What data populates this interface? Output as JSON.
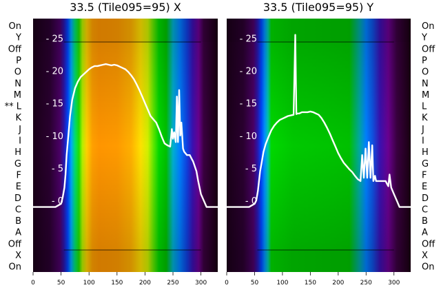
{
  "colors": {
    "trace": "#ffffff",
    "background": "#ffffff"
  },
  "row_labels": [
    "On",
    "Y",
    "Off",
    "P",
    "O",
    "N",
    "M",
    "** L",
    "K",
    "J",
    "I",
    "H",
    "G",
    "F",
    "E",
    "D",
    "C",
    "B",
    "A",
    "Off",
    "X",
    "On"
  ],
  "chart_data": [
    {
      "type": "heatmap",
      "title": "33.5 (Tile095=95) X",
      "xlim": [
        0,
        330
      ],
      "x_ticks": [
        0,
        50,
        100,
        150,
        200,
        250,
        300
      ],
      "ylim": [
        -11,
        28
      ],
      "y_ticks": [
        25,
        20,
        15,
        10,
        5,
        0
      ],
      "grid": false,
      "band_colors": [
        {
          "x": 0,
          "color": "#1a0018"
        },
        {
          "x": 30,
          "color": "#2a0030"
        },
        {
          "x": 48,
          "color": "#4a0066"
        },
        {
          "x": 55,
          "color": "#2c15a8"
        },
        {
          "x": 62,
          "color": "#0046ff"
        },
        {
          "x": 68,
          "color": "#00a6ff"
        },
        {
          "x": 75,
          "color": "#00e070"
        },
        {
          "x": 82,
          "color": "#22e000"
        },
        {
          "x": 88,
          "color": "#b4f000"
        },
        {
          "x": 96,
          "color": "#ffd000"
        },
        {
          "x": 106,
          "color": "#ffa000"
        },
        {
          "x": 118,
          "color": "#ff9500"
        },
        {
          "x": 150,
          "color": "#ff9a00"
        },
        {
          "x": 175,
          "color": "#ffb000"
        },
        {
          "x": 192,
          "color": "#ffe000"
        },
        {
          "x": 205,
          "color": "#d2f000"
        },
        {
          "x": 215,
          "color": "#60e800"
        },
        {
          "x": 225,
          "color": "#00d800"
        },
        {
          "x": 238,
          "color": "#00c000"
        },
        {
          "x": 250,
          "color": "#00b0d0"
        },
        {
          "x": 262,
          "color": "#0080ff"
        },
        {
          "x": 275,
          "color": "#1040e0"
        },
        {
          "x": 285,
          "color": "#3a10b0"
        },
        {
          "x": 296,
          "color": "#6a0090"
        },
        {
          "x": 305,
          "color": "#3a0040"
        },
        {
          "x": 330,
          "color": "#180010"
        }
      ],
      "series": [
        {
          "x": [
            0,
            20,
            40,
            50,
            53,
            56,
            58,
            60,
            63,
            66,
            70,
            75,
            80,
            85,
            90,
            95,
            100,
            105,
            110,
            115,
            120,
            125,
            130,
            135,
            140,
            145,
            150,
            155,
            160,
            165,
            170,
            175,
            180,
            185,
            190,
            195,
            200,
            205,
            210,
            215,
            220,
            225,
            230,
            235,
            240,
            245,
            248,
            250,
            252,
            255,
            257,
            259,
            261,
            263,
            265,
            268,
            270,
            275,
            280,
            283,
            286,
            288,
            290,
            292,
            295,
            300,
            305,
            310,
            315,
            330
          ],
          "y": [
            -1,
            -1,
            -1,
            -0.5,
            0.5,
            2,
            4,
            7,
            10,
            13,
            15.5,
            17.3,
            18.3,
            19,
            19.4,
            19.8,
            20.2,
            20.5,
            20.7,
            20.7,
            20.8,
            20.9,
            21,
            20.9,
            20.8,
            20.9,
            20.8,
            20.6,
            20.4,
            20.2,
            19.8,
            19.3,
            18.7,
            17.9,
            17,
            16,
            15,
            14,
            13,
            12.5,
            12,
            11,
            9.8,
            8.8,
            8.5,
            8.3,
            11,
            9.5,
            10.5,
            9,
            16,
            9,
            17,
            10,
            12,
            8,
            7.5,
            7,
            7,
            6.5,
            6,
            5.5,
            5,
            4.5,
            3,
            1,
            0,
            -1,
            -1,
            -1
          ]
        }
      ]
    },
    {
      "type": "heatmap",
      "title": "33.5 (Tile095=95) Y",
      "xlim": [
        0,
        330
      ],
      "x_ticks": [
        0,
        50,
        100,
        150,
        200,
        250,
        300
      ],
      "ylim": [
        -11,
        28
      ],
      "y_ticks": [
        25,
        20,
        15,
        10,
        5,
        0
      ],
      "grid": false,
      "band_colors": [
        {
          "x": 0,
          "color": "#1a0018"
        },
        {
          "x": 30,
          "color": "#2a0030"
        },
        {
          "x": 48,
          "color": "#4a0066"
        },
        {
          "x": 55,
          "color": "#2c15a8"
        },
        {
          "x": 62,
          "color": "#0046ff"
        },
        {
          "x": 68,
          "color": "#0090ff"
        },
        {
          "x": 74,
          "color": "#00c8b0"
        },
        {
          "x": 80,
          "color": "#00d800"
        },
        {
          "x": 120,
          "color": "#00c800"
        },
        {
          "x": 180,
          "color": "#00c400"
        },
        {
          "x": 220,
          "color": "#00c000"
        },
        {
          "x": 238,
          "color": "#00a8a0"
        },
        {
          "x": 250,
          "color": "#0080ff"
        },
        {
          "x": 262,
          "color": "#1050e0"
        },
        {
          "x": 275,
          "color": "#3a10b0"
        },
        {
          "x": 290,
          "color": "#6a0090"
        },
        {
          "x": 305,
          "color": "#3a0040"
        },
        {
          "x": 330,
          "color": "#180010"
        }
      ],
      "series": [
        {
          "x": [
            0,
            20,
            40,
            50,
            53,
            56,
            58,
            60,
            63,
            66,
            70,
            75,
            80,
            85,
            90,
            95,
            100,
            105,
            110,
            115,
            120,
            123,
            125,
            127,
            130,
            135,
            140,
            145,
            150,
            155,
            160,
            165,
            170,
            175,
            180,
            185,
            190,
            195,
            200,
            205,
            210,
            215,
            220,
            225,
            230,
            235,
            240,
            243,
            246,
            249,
            252,
            255,
            258,
            261,
            263,
            266,
            268,
            270,
            275,
            280,
            285,
            288,
            290,
            292,
            295,
            300,
            305,
            310,
            315,
            330
          ],
          "y": [
            -1,
            -1,
            -1,
            -0.5,
            0,
            1.5,
            3,
            4.5,
            6,
            7.5,
            8.7,
            9.8,
            10.8,
            11.5,
            12,
            12.4,
            12.6,
            12.8,
            13,
            13.1,
            13.2,
            25.5,
            13.3,
            13.4,
            13.4,
            13.6,
            13.6,
            13.6,
            13.7,
            13.6,
            13.4,
            13.2,
            12.7,
            12,
            11.2,
            10.3,
            9.3,
            8.3,
            7.3,
            6.5,
            5.8,
            5.3,
            4.8,
            4.4,
            3.8,
            3.3,
            3,
            7,
            3.5,
            8,
            3.5,
            9,
            3.5,
            8.5,
            3,
            3.8,
            3,
            3,
            3,
            3,
            3,
            2.5,
            2.2,
            4,
            2,
            1,
            0,
            -1,
            -1,
            -1
          ]
        }
      ]
    }
  ]
}
